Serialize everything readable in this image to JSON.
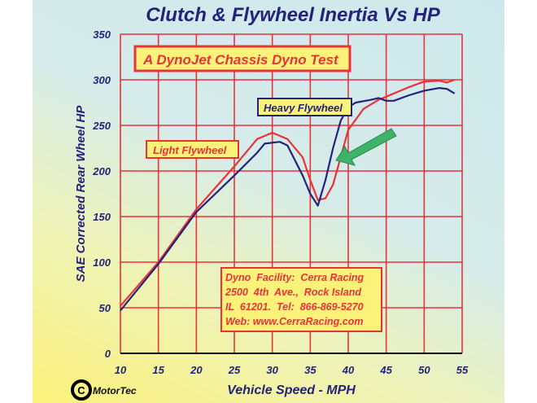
{
  "chart_data": {
    "type": "line",
    "title": "Clutch & Flywheel Inertia Vs HP",
    "xlabel": "Vehicle Speed - MPH",
    "ylabel": "SAE Corrected Rear Wheel HP",
    "xlim": [
      10,
      55
    ],
    "ylim": [
      0,
      350
    ],
    "xticks": [
      10,
      15,
      20,
      25,
      30,
      35,
      40,
      45,
      50,
      55
    ],
    "yticks": [
      0,
      50,
      100,
      150,
      200,
      250,
      300,
      350
    ],
    "grid": true,
    "series": [
      {
        "name": "Light Flywheel",
        "color": "#e8333b",
        "x": [
          10,
          15,
          20,
          25,
          28,
          30,
          32,
          34,
          35,
          36,
          37,
          38,
          39,
          40,
          42,
          44,
          46,
          48,
          50,
          52,
          53,
          54
        ],
        "y": [
          52,
          100,
          158,
          205,
          235,
          242,
          235,
          215,
          190,
          168,
          170,
          185,
          215,
          245,
          268,
          278,
          285,
          292,
          298,
          299,
          297,
          300
        ]
      },
      {
        "name": "Heavy Flywheel",
        "color": "#23237a",
        "x": [
          10,
          15,
          20,
          25,
          28,
          29,
          31,
          32,
          34,
          35,
          36,
          37,
          38,
          39,
          40,
          41,
          43,
          44,
          45,
          46,
          48,
          50,
          52,
          53,
          54
        ],
        "y": [
          47,
          98,
          155,
          195,
          220,
          230,
          232,
          228,
          195,
          175,
          162,
          190,
          225,
          255,
          270,
          275,
          278,
          280,
          277,
          277,
          283,
          288,
          291,
          290,
          285
        ]
      }
    ],
    "annotations": {
      "subtitle": "A DynoJet Chassis Dyno Test",
      "facility": [
        "Dyno  Facility:  Cerra Racing",
        "2500  4th  Ave.,  Rock Island",
        "IL  61201.  Tel:  866-869-5270",
        "Web: www.CerraRacing.com"
      ],
      "logo": "MotorTec",
      "logo_mark": "C"
    },
    "colors": {
      "grid": "#e8333b",
      "text": "#23237a",
      "label_bg": "#fbf27a",
      "arrow": "#3fb36a"
    }
  }
}
